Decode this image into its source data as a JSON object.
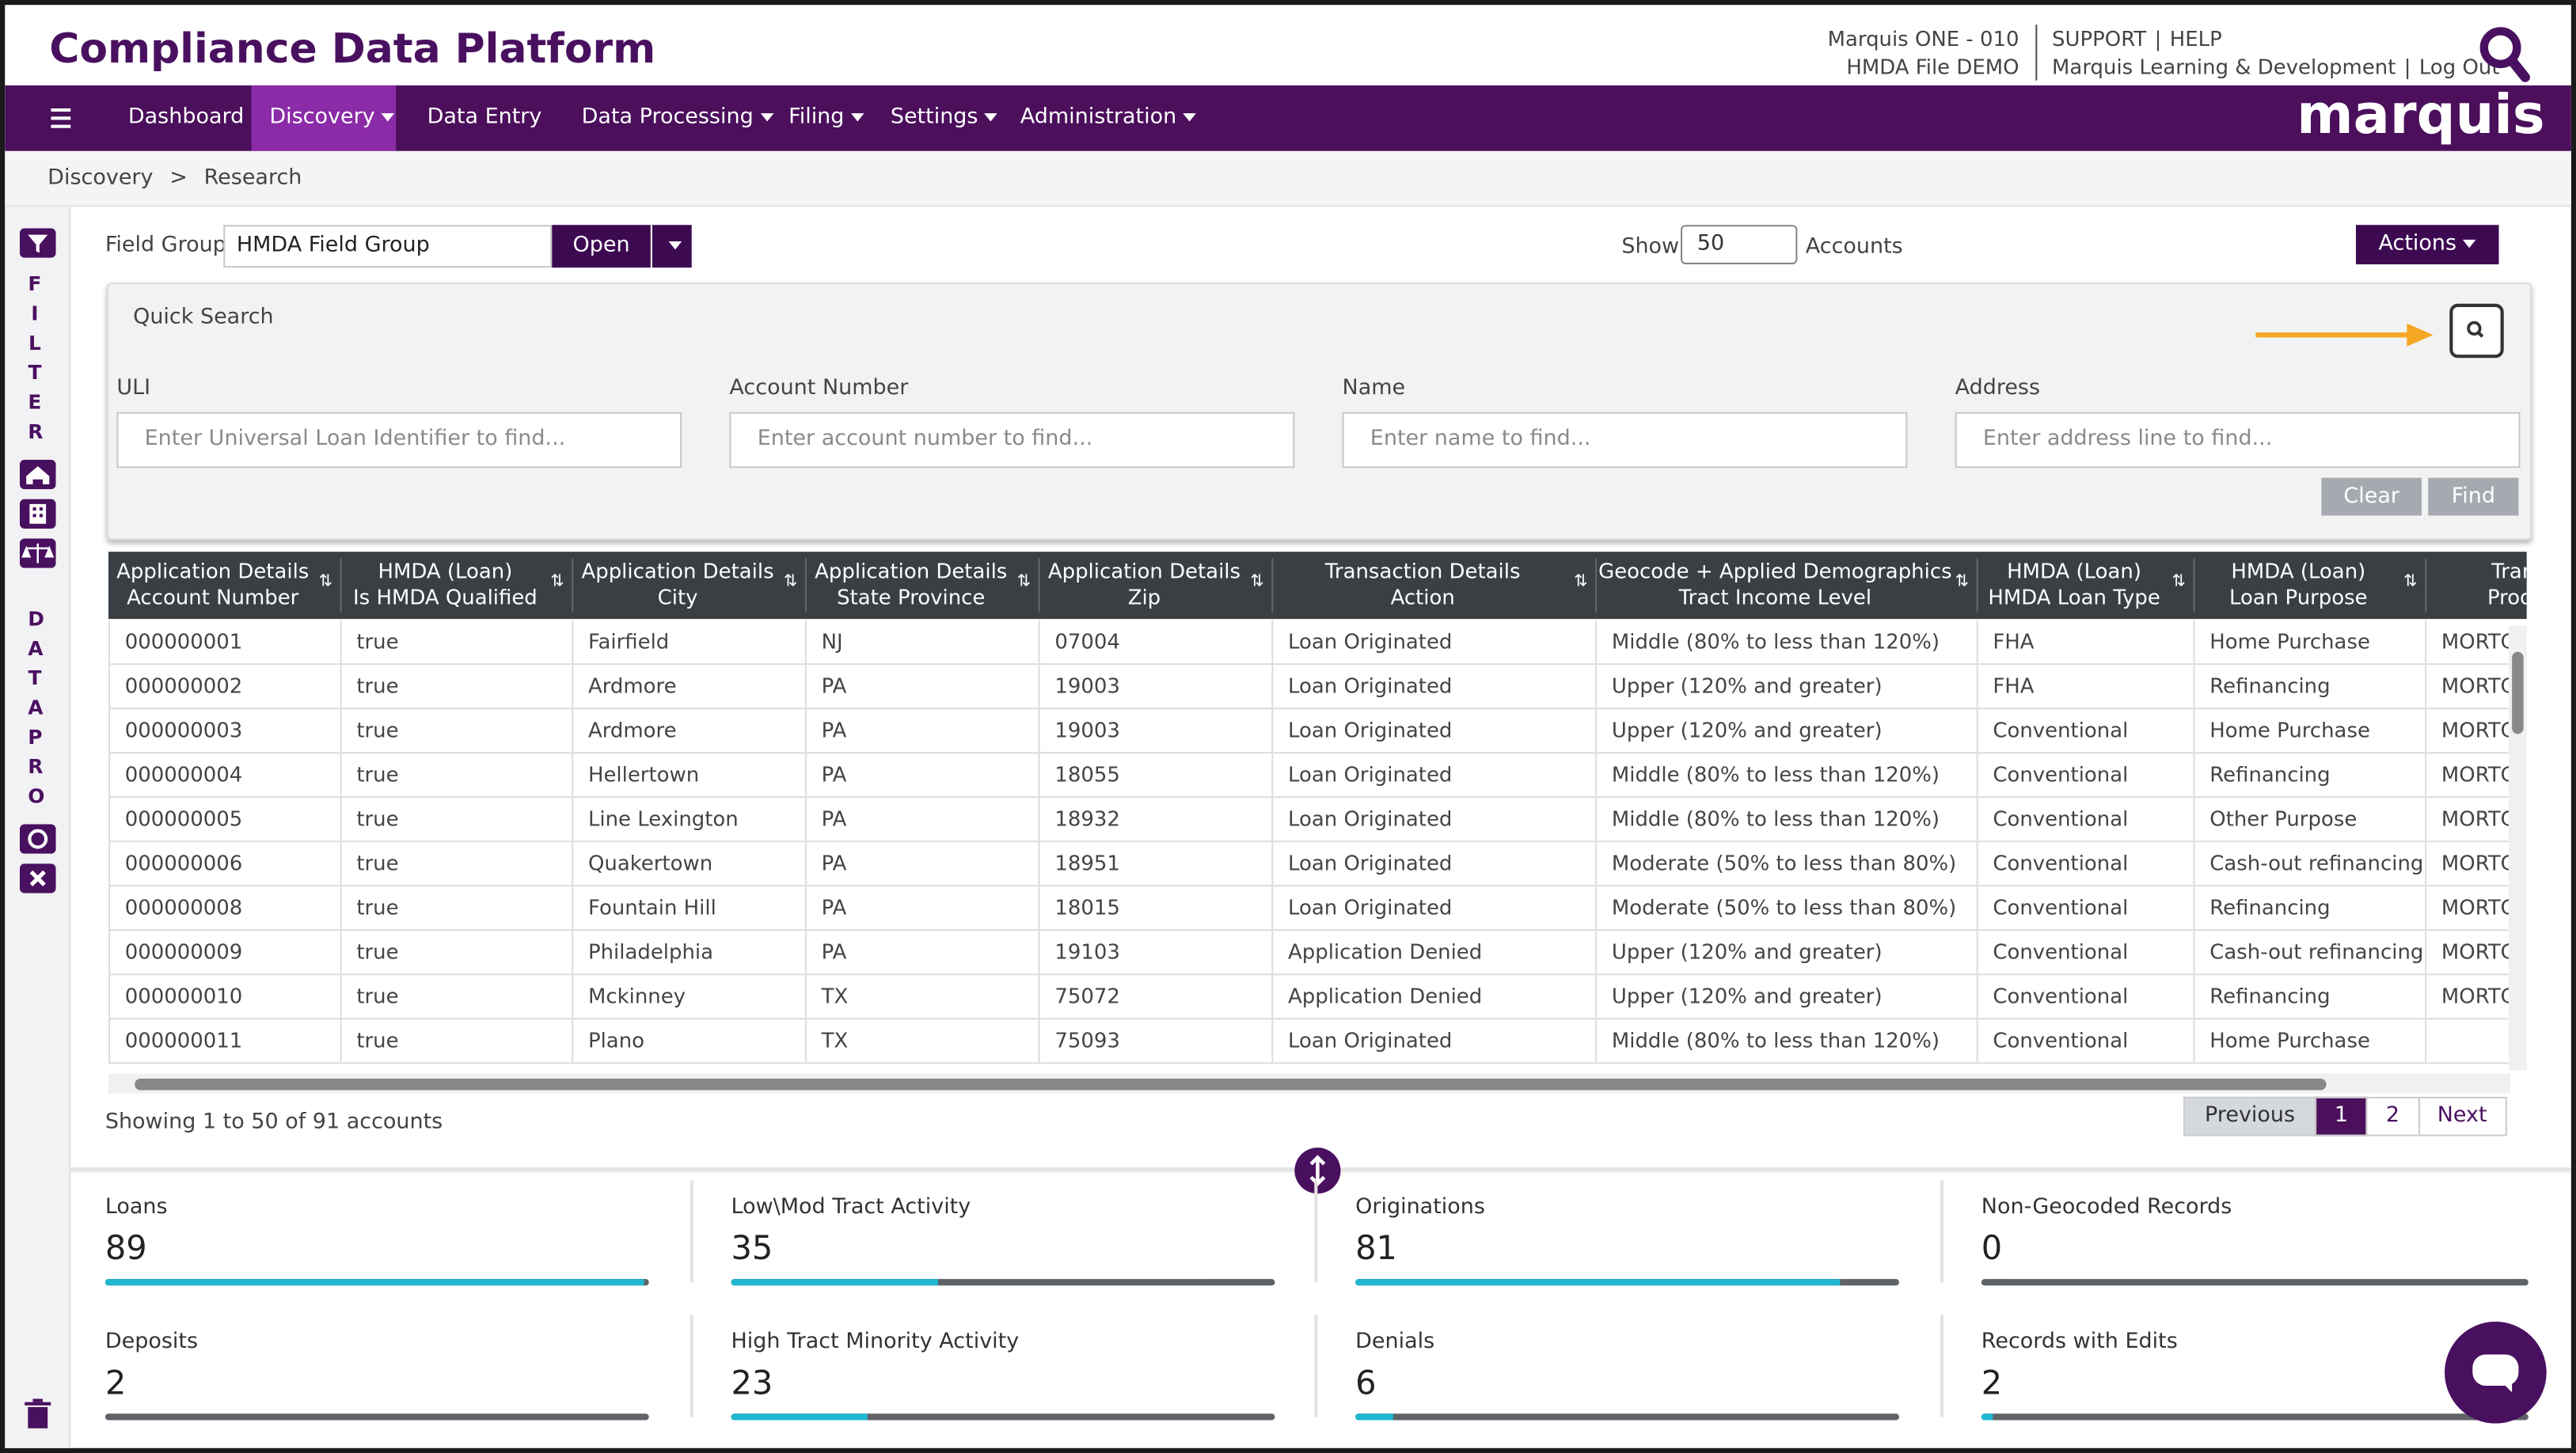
{
  "header": {
    "title": "Compliance Data Platform",
    "org": "Marquis ONE - 010",
    "file": "HMDA File DEMO",
    "links": [
      "SUPPORT",
      "HELP",
      "Marquis Learning & Development",
      "Log Out"
    ],
    "logo": "marquis"
  },
  "nav": [
    "Dashboard",
    "Discovery",
    "Data Entry",
    "Data Processing",
    "Filing",
    "Settings",
    "Administration"
  ],
  "breadcrumb": [
    "Discovery",
    "Research"
  ],
  "sidebar": {
    "filter": "FILTER",
    "datapro": "DATAPRO"
  },
  "toolbar": {
    "field_group_label": "Field Group",
    "field_group_value": "HMDA Field Group",
    "open": "Open",
    "show_label": "Show",
    "show_value": "50",
    "accounts": "Accounts",
    "actions": "Actions"
  },
  "quick_search": {
    "title": "Quick Search",
    "fields": [
      {
        "label": "ULI",
        "placeholder": "Enter Universal Loan Identifier to find..."
      },
      {
        "label": "Account Number",
        "placeholder": "Enter account number to find..."
      },
      {
        "label": "Name",
        "placeholder": "Enter name to find..."
      },
      {
        "label": "Address",
        "placeholder": "Enter address line to find..."
      }
    ],
    "clear": "Clear",
    "find": "Find"
  },
  "table": {
    "columns": [
      [
        "Application Details",
        "Account Number"
      ],
      [
        "HMDA (Loan)",
        "Is HMDA Qualified"
      ],
      [
        "Application Details",
        "City"
      ],
      [
        "Application Details",
        "State Province"
      ],
      [
        "Application Details",
        "Zip"
      ],
      [
        "Transaction Details",
        "Action"
      ],
      [
        "Geocode + Applied Demographics",
        "Tract Income Level"
      ],
      [
        "HMDA (Loan)",
        "HMDA Loan Type"
      ],
      [
        "HMDA (Loan)",
        "Loan Purpose"
      ],
      [
        "Transacti",
        "Product D"
      ]
    ],
    "rows": [
      [
        "000000001",
        "true",
        "Fairfield",
        "NJ",
        "07004",
        "Loan Originated",
        "Middle (80% to less than 120%)",
        "FHA",
        "Home Purchase",
        "MORTG"
      ],
      [
        "000000002",
        "true",
        "Ardmore",
        "PA",
        "19003",
        "Loan Originated",
        "Upper (120% and greater)",
        "FHA",
        "Refinancing",
        "MORTG"
      ],
      [
        "000000003",
        "true",
        "Ardmore",
        "PA",
        "19003",
        "Loan Originated",
        "Upper (120% and greater)",
        "Conventional",
        "Home Purchase",
        "MORTG"
      ],
      [
        "000000004",
        "true",
        "Hellertown",
        "PA",
        "18055",
        "Loan Originated",
        "Middle (80% to less than 120%)",
        "Conventional",
        "Refinancing",
        "MORTG"
      ],
      [
        "000000005",
        "true",
        "Line Lexington",
        "PA",
        "18932",
        "Loan Originated",
        "Middle (80% to less than 120%)",
        "Conventional",
        "Other Purpose",
        "MORTG"
      ],
      [
        "000000006",
        "true",
        "Quakertown",
        "PA",
        "18951",
        "Loan Originated",
        "Moderate (50% to less than 80%)",
        "Conventional",
        "Cash-out refinancing",
        "MORTG"
      ],
      [
        "000000008",
        "true",
        "Fountain Hill",
        "PA",
        "18015",
        "Loan Originated",
        "Moderate (50% to less than 80%)",
        "Conventional",
        "Refinancing",
        "MORTG"
      ],
      [
        "000000009",
        "true",
        "Philadelphia",
        "PA",
        "19103",
        "Application Denied",
        "Upper (120% and greater)",
        "Conventional",
        "Cash-out refinancing",
        "MORTG"
      ],
      [
        "000000010",
        "true",
        "Mckinney",
        "TX",
        "75072",
        "Application Denied",
        "Upper (120% and greater)",
        "Conventional",
        "Refinancing",
        "MORTG"
      ],
      [
        "000000011",
        "true",
        "Plano",
        "TX",
        "75093",
        "Loan Originated",
        "Middle (80% to less than 120%)",
        "Conventional",
        "Home Purchase",
        null
      ]
    ]
  },
  "footer": {
    "showing": "Showing 1 to 50 of 91 accounts",
    "pagination": [
      "Previous",
      "1",
      "2",
      "Next"
    ]
  },
  "stats": [
    {
      "label": "Loans",
      "value": 89
    },
    {
      "label": "Low\\Mod Tract Activity",
      "value": 35
    },
    {
      "label": "Originations",
      "value": 81
    },
    {
      "label": "Non-Geocoded Records",
      "value": 0
    },
    {
      "label": "Deposits",
      "value": 2
    },
    {
      "label": "High Tract Minority Activity",
      "value": 23
    },
    {
      "label": "Denials",
      "value": 6
    },
    {
      "label": "Records with Edits",
      "value": 2
    }
  ]
}
